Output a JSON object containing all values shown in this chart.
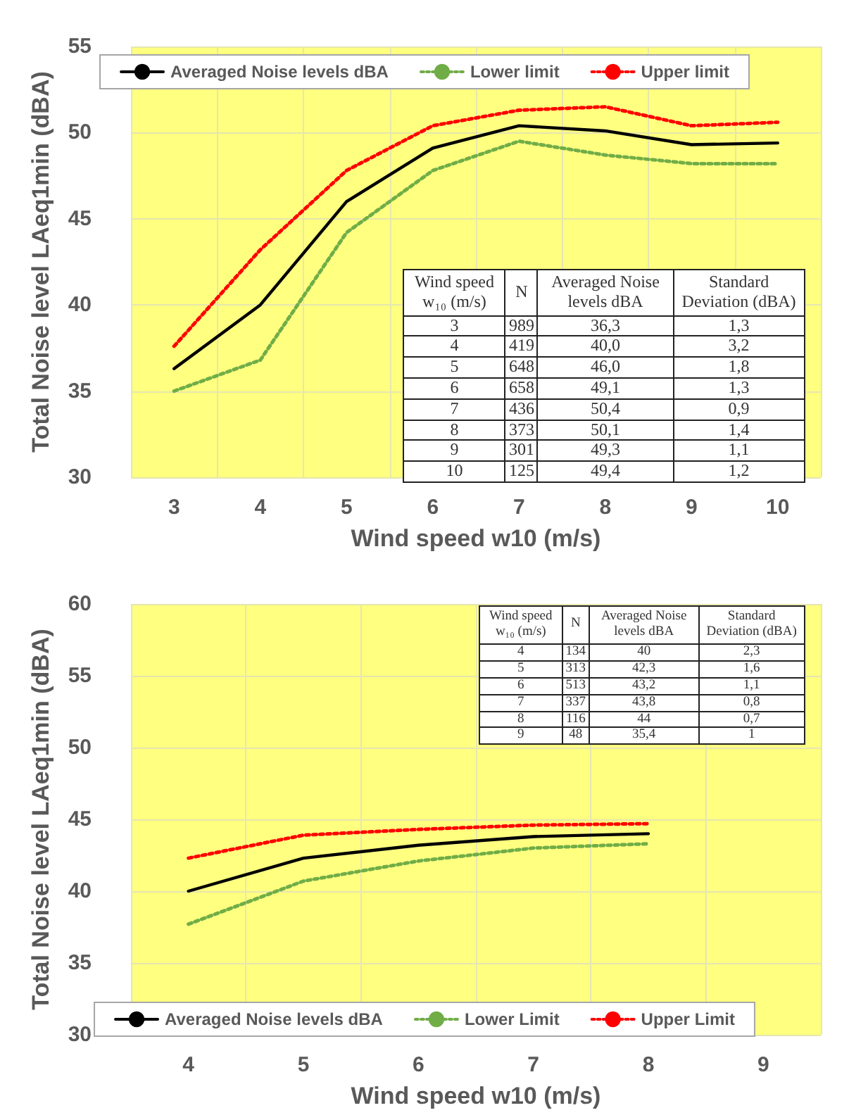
{
  "chart_data": [
    {
      "type": "line",
      "xlabel": "Wind speed w10 (m/s)",
      "ylabel": "Total Noise level LAeq1min (dBA)",
      "categories": [
        "3",
        "4",
        "5",
        "6",
        "7",
        "8",
        "9",
        "10"
      ],
      "series": [
        {
          "name": "Averaged Noise levels dBA",
          "color": "#000000",
          "line_style": "solid",
          "values": [
            36.3,
            40.0,
            46.0,
            49.1,
            50.4,
            50.1,
            49.3,
            49.4
          ]
        },
        {
          "name": "Lower limit",
          "color": "#70ad47",
          "line_style": "dotted",
          "values": [
            35.0,
            36.8,
            44.2,
            47.8,
            49.5,
            48.7,
            48.2,
            48.2
          ]
        },
        {
          "name": "Upper limit",
          "color": "#ff0000",
          "line_style": "dotted",
          "values": [
            37.6,
            43.2,
            47.8,
            50.4,
            51.3,
            51.5,
            50.4,
            50.6
          ]
        }
      ],
      "ylim": [
        30,
        55
      ],
      "yticks": [
        30,
        35,
        40,
        45,
        50,
        55
      ],
      "grid": true,
      "legend": "top",
      "marker": "none",
      "annotations": [
        "Wind speed w₁₀ (m/s)",
        "N",
        "Averaged Noise levels dBA",
        "Standard Deviation (dBA)",
        "3",
        "989",
        "36,3",
        "1,3",
        "4",
        "419",
        "40,0",
        "3,2",
        "5",
        "648",
        "46,0",
        "1,8",
        "6",
        "658",
        "49,1",
        "1,3",
        "7",
        "436",
        "50,4",
        "0,9",
        "8",
        "373",
        "50,1",
        "1,4",
        "9",
        "301",
        "49,3",
        "1,1",
        "10",
        "125",
        "49,4",
        "1,2"
      ]
    },
    {
      "type": "line",
      "xlabel": "Wind speed w10 (m/s)",
      "ylabel": "Total Noise level LAeq1min (dBA)",
      "categories": [
        "4",
        "5",
        "6",
        "7",
        "8",
        "9"
      ],
      "series": [
        {
          "name": "Averaged Noise levels dBA",
          "color": "#000000",
          "line_style": "solid",
          "values": [
            40,
            42.3,
            43.2,
            43.8,
            44,
            null
          ]
        },
        {
          "name": "Lower Limit",
          "color": "#70ad47",
          "line_style": "dotted",
          "values": [
            37.7,
            40.7,
            42.1,
            43.0,
            43.3,
            null
          ]
        },
        {
          "name": "Upper Limit",
          "color": "#ff0000",
          "line_style": "dotted",
          "values": [
            42.3,
            43.9,
            44.3,
            44.6,
            44.7,
            null
          ]
        }
      ],
      "ylim": [
        30,
        60
      ],
      "yticks": [
        30,
        35,
        40,
        45,
        50,
        55,
        60
      ],
      "grid": true,
      "legend": "bottom",
      "marker": "none",
      "annotations": [
        "Wind speed w₁₀ (m/s)",
        "N",
        "Averaged Noise levels dBA",
        "Standard Deviation (dBA)",
        "4",
        "134",
        "40",
        "2,3",
        "5",
        "313",
        "42,3",
        "1,6",
        "6",
        "513",
        "43,2",
        "1,1",
        "7",
        "337",
        "43,8",
        "0,8",
        "8",
        "116",
        "44",
        "0,7",
        "9",
        "48",
        "35,4",
        "1"
      ]
    }
  ]
}
